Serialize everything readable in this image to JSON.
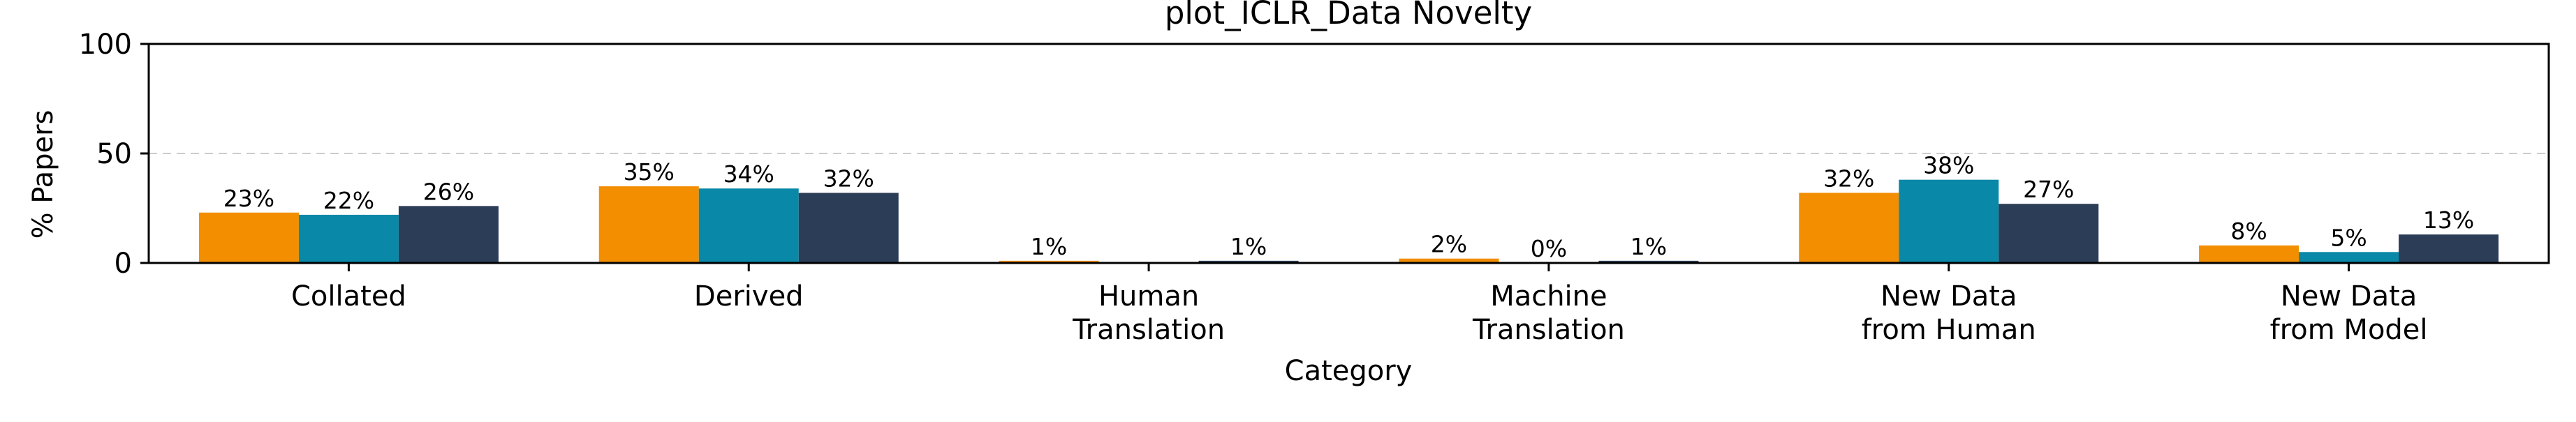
{
  "chart_data": {
    "type": "bar",
    "title": "plot_ICLR_Data Novelty",
    "xlabel": "Category",
    "ylabel": "% Papers",
    "ylim": [
      0,
      100
    ],
    "yticks": [
      0,
      50,
      100
    ],
    "grid": "y-dashed",
    "categories": [
      [
        "Collated"
      ],
      [
        "Derived"
      ],
      [
        "Human",
        "Translation"
      ],
      [
        "Machine",
        "Translation"
      ],
      [
        "New Data",
        "from Human"
      ],
      [
        "New Data",
        "from Model"
      ]
    ],
    "series": [
      {
        "color": "#F28E00",
        "values": [
          23,
          35,
          1,
          2,
          32,
          8
        ],
        "labels": [
          "23%",
          "35%",
          "1%",
          "2%",
          "32%",
          "8%"
        ]
      },
      {
        "color": "#0A88A8",
        "values": [
          22,
          34,
          0,
          0,
          38,
          5
        ],
        "labels": [
          "22%",
          "34%",
          "",
          "0%",
          "38%",
          "5%"
        ]
      },
      {
        "color": "#2C3E57",
        "values": [
          26,
          32,
          1,
          1,
          27,
          13
        ],
        "labels": [
          "26%",
          "32%",
          "1%",
          "1%",
          "27%",
          "13%"
        ]
      }
    ]
  }
}
